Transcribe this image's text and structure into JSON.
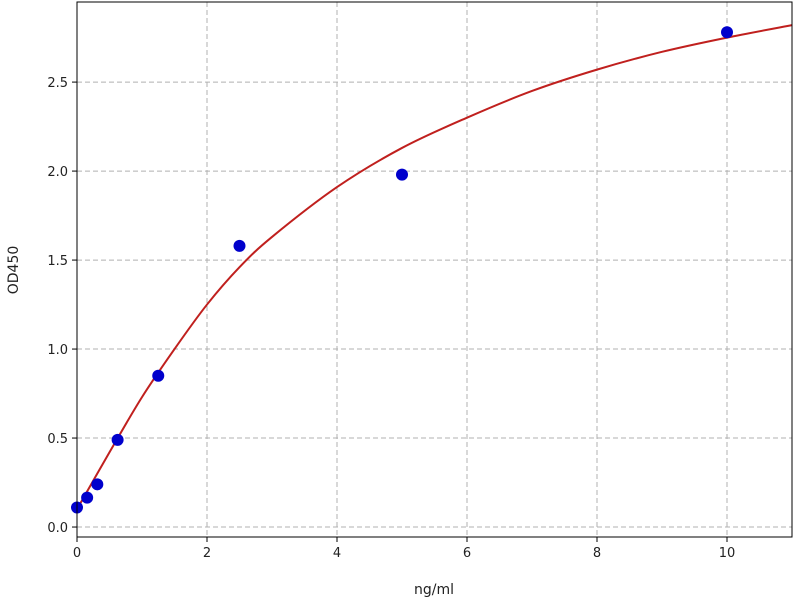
{
  "chart_data": {
    "type": "scatter",
    "title": "",
    "xlabel": "ng/ml",
    "ylabel": "OD450",
    "xlim": [
      0,
      11
    ],
    "ylim": [
      -0.056,
      2.95
    ],
    "xticks": [
      0,
      2,
      4,
      6,
      8,
      10
    ],
    "xtick_labels": [
      "0",
      "2",
      "4",
      "6",
      "8",
      "10"
    ],
    "yticks": [
      0.0,
      0.5,
      1.0,
      1.5,
      2.0,
      2.5
    ],
    "ytick_labels": [
      "0.0",
      "0.5",
      "1.0",
      "1.5",
      "2.0",
      "2.5"
    ],
    "grid": true,
    "grid_style": "dashed",
    "points": {
      "x": [
        0,
        0.156,
        0.3125,
        0.625,
        1.25,
        2.5,
        5,
        10
      ],
      "y": [
        0.11,
        0.165,
        0.24,
        0.49,
        0.85,
        1.58,
        1.98,
        2.78
      ],
      "color": "#0000cc"
    },
    "fit_curve": {
      "x": [
        0,
        0.5,
        1,
        1.5,
        2,
        2.5,
        3,
        4,
        5,
        6,
        7,
        8,
        9,
        10,
        11
      ],
      "y": [
        0.1,
        0.42,
        0.73,
        1.0,
        1.25,
        1.46,
        1.63,
        1.91,
        2.13,
        2.3,
        2.45,
        2.57,
        2.67,
        2.75,
        2.82
      ],
      "color": "#c0201e"
    }
  }
}
